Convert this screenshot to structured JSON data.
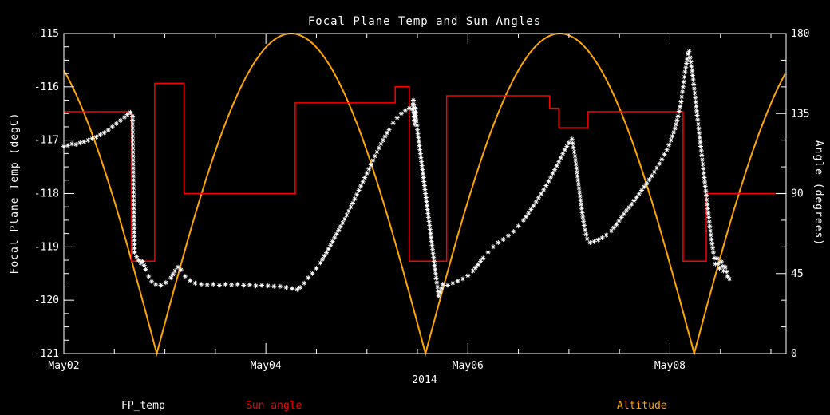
{
  "chart_data": {
    "type": "line",
    "title": "Focal Plane Temp and Sun Angles",
    "background_color": "#000000",
    "axis_color": "#ffffff",
    "x_axis": {
      "year_label": "2014",
      "min_days": 0,
      "max_days": 7.15,
      "tick_positions_days": [
        0,
        2,
        4,
        6
      ],
      "tick_labels": [
        "May02",
        "May04",
        "May06",
        "May08"
      ],
      "minor_tick_step_days": 0.5
    },
    "y_left_axis": {
      "label": "Focal Plane Temp (degC)",
      "min": -121,
      "max": -115,
      "tick_values": [
        -115,
        -116,
        -117,
        -118,
        -119,
        -120,
        -121
      ],
      "tick_labels": [
        "-115",
        "-116",
        "-117",
        "-118",
        "-119",
        "-120",
        "-121"
      ],
      "minor_tick_step": 0.25
    },
    "y_right_axis": {
      "label": "Angle (degrees)",
      "min": 0,
      "max": 180,
      "tick_values": [
        0,
        45,
        90,
        135,
        180
      ],
      "tick_labels": [
        "0",
        "45",
        "90",
        "135",
        "180"
      ],
      "minor_tick_step": 15
    },
    "series": [
      {
        "name": "FP_temp",
        "axis": "left",
        "style": "asterisk-markers",
        "color": "#ffffff",
        "points_t_days_temp_degC": [
          [
            0.0,
            -117.12
          ],
          [
            0.04,
            -117.1
          ],
          [
            0.08,
            -117.07
          ],
          [
            0.12,
            -117.08
          ],
          [
            0.16,
            -117.05
          ],
          [
            0.2,
            -117.03
          ],
          [
            0.24,
            -117.0
          ],
          [
            0.28,
            -116.97
          ],
          [
            0.32,
            -116.94
          ],
          [
            0.36,
            -116.9
          ],
          [
            0.4,
            -116.86
          ],
          [
            0.44,
            -116.81
          ],
          [
            0.48,
            -116.75
          ],
          [
            0.52,
            -116.69
          ],
          [
            0.56,
            -116.63
          ],
          [
            0.6,
            -116.57
          ],
          [
            0.63,
            -116.52
          ],
          [
            0.66,
            -116.48
          ],
          [
            0.68,
            -116.55
          ],
          [
            0.7,
            -119.1
          ],
          [
            0.72,
            -119.18
          ],
          [
            0.74,
            -119.25
          ],
          [
            0.76,
            -119.3
          ],
          [
            0.78,
            -119.27
          ],
          [
            0.81,
            -119.42
          ],
          [
            0.84,
            -119.55
          ],
          [
            0.87,
            -119.65
          ],
          [
            0.91,
            -119.7
          ],
          [
            0.96,
            -119.72
          ],
          [
            1.01,
            -119.67
          ],
          [
            1.06,
            -119.58
          ],
          [
            1.1,
            -119.45
          ],
          [
            1.13,
            -119.38
          ],
          [
            1.16,
            -119.43
          ],
          [
            1.2,
            -119.55
          ],
          [
            1.25,
            -119.63
          ],
          [
            1.3,
            -119.68
          ],
          [
            1.36,
            -119.7
          ],
          [
            1.42,
            -119.71
          ],
          [
            1.48,
            -119.7
          ],
          [
            1.54,
            -119.72
          ],
          [
            1.6,
            -119.7
          ],
          [
            1.66,
            -119.71
          ],
          [
            1.72,
            -119.7
          ],
          [
            1.78,
            -119.72
          ],
          [
            1.84,
            -119.71
          ],
          [
            1.9,
            -119.73
          ],
          [
            1.96,
            -119.72
          ],
          [
            2.02,
            -119.73
          ],
          [
            2.08,
            -119.74
          ],
          [
            2.14,
            -119.74
          ],
          [
            2.2,
            -119.76
          ],
          [
            2.26,
            -119.78
          ],
          [
            2.31,
            -119.8
          ],
          [
            2.34,
            -119.76
          ],
          [
            2.38,
            -119.68
          ],
          [
            2.42,
            -119.58
          ],
          [
            2.46,
            -119.5
          ],
          [
            2.5,
            -119.4
          ],
          [
            2.54,
            -119.3
          ],
          [
            2.58,
            -119.17
          ],
          [
            2.62,
            -119.04
          ],
          [
            2.66,
            -118.9
          ],
          [
            2.7,
            -118.76
          ],
          [
            2.74,
            -118.62
          ],
          [
            2.78,
            -118.48
          ],
          [
            2.82,
            -118.33
          ],
          [
            2.86,
            -118.18
          ],
          [
            2.9,
            -118.02
          ],
          [
            2.94,
            -117.86
          ],
          [
            2.98,
            -117.7
          ],
          [
            3.02,
            -117.54
          ],
          [
            3.06,
            -117.38
          ],
          [
            3.1,
            -117.22
          ],
          [
            3.14,
            -117.07
          ],
          [
            3.18,
            -116.93
          ],
          [
            3.22,
            -116.8
          ],
          [
            3.26,
            -116.68
          ],
          [
            3.3,
            -116.58
          ],
          [
            3.34,
            -116.5
          ],
          [
            3.38,
            -116.44
          ],
          [
            3.42,
            -116.4
          ],
          [
            3.45,
            -116.42
          ],
          [
            3.46,
            -116.25
          ],
          [
            3.47,
            -116.7
          ],
          [
            3.48,
            -116.4
          ],
          [
            3.5,
            -116.8
          ],
          [
            3.54,
            -117.4
          ],
          [
            3.58,
            -118.0
          ],
          [
            3.62,
            -118.6
          ],
          [
            3.65,
            -119.05
          ],
          [
            3.68,
            -119.5
          ],
          [
            3.71,
            -119.92
          ],
          [
            3.75,
            -119.7
          ],
          [
            3.8,
            -119.72
          ],
          [
            3.85,
            -119.68
          ],
          [
            3.9,
            -119.64
          ],
          [
            3.95,
            -119.6
          ],
          [
            4.0,
            -119.54
          ],
          [
            4.05,
            -119.45
          ],
          [
            4.1,
            -119.33
          ],
          [
            4.15,
            -119.21
          ],
          [
            4.2,
            -119.1
          ],
          [
            4.25,
            -119.0
          ],
          [
            4.3,
            -118.92
          ],
          [
            4.35,
            -118.86
          ],
          [
            4.4,
            -118.79
          ],
          [
            4.45,
            -118.71
          ],
          [
            4.5,
            -118.61
          ],
          [
            4.55,
            -118.5
          ],
          [
            4.6,
            -118.37
          ],
          [
            4.65,
            -118.23
          ],
          [
            4.7,
            -118.08
          ],
          [
            4.75,
            -117.93
          ],
          [
            4.8,
            -117.77
          ],
          [
            4.84,
            -117.62
          ],
          [
            4.88,
            -117.48
          ],
          [
            4.92,
            -117.33
          ],
          [
            4.96,
            -117.18
          ],
          [
            5.0,
            -117.05
          ],
          [
            5.03,
            -116.98
          ],
          [
            5.06,
            -117.3
          ],
          [
            5.09,
            -117.75
          ],
          [
            5.12,
            -118.2
          ],
          [
            5.15,
            -118.6
          ],
          [
            5.18,
            -118.85
          ],
          [
            5.21,
            -118.92
          ],
          [
            5.25,
            -118.9
          ],
          [
            5.29,
            -118.87
          ],
          [
            5.33,
            -118.83
          ],
          [
            5.37,
            -118.78
          ],
          [
            5.42,
            -118.7
          ],
          [
            5.47,
            -118.58
          ],
          [
            5.52,
            -118.45
          ],
          [
            5.57,
            -118.32
          ],
          [
            5.62,
            -118.2
          ],
          [
            5.67,
            -118.07
          ],
          [
            5.72,
            -117.94
          ],
          [
            5.77,
            -117.81
          ],
          [
            5.82,
            -117.67
          ],
          [
            5.87,
            -117.52
          ],
          [
            5.92,
            -117.36
          ],
          [
            5.97,
            -117.18
          ],
          [
            6.01,
            -117.0
          ],
          [
            6.05,
            -116.78
          ],
          [
            6.08,
            -116.55
          ],
          [
            6.11,
            -116.28
          ],
          [
            6.13,
            -116.0
          ],
          [
            6.15,
            -115.72
          ],
          [
            6.17,
            -115.48
          ],
          [
            6.18,
            -115.38
          ],
          [
            6.19,
            -115.34
          ],
          [
            6.2,
            -115.45
          ],
          [
            6.22,
            -115.7
          ],
          [
            6.25,
            -116.2
          ],
          [
            6.28,
            -116.7
          ],
          [
            6.31,
            -117.2
          ],
          [
            6.34,
            -117.7
          ],
          [
            6.37,
            -118.2
          ],
          [
            6.4,
            -118.7
          ],
          [
            6.43,
            -119.1
          ],
          [
            6.45,
            -119.32
          ],
          [
            6.47,
            -119.22
          ],
          [
            6.49,
            -119.4
          ],
          [
            6.51,
            -119.28
          ],
          [
            6.53,
            -119.45
          ],
          [
            6.55,
            -119.38
          ],
          [
            6.57,
            -119.55
          ],
          [
            6.59,
            -119.6
          ]
        ]
      },
      {
        "name": "Sun angle",
        "axis": "right",
        "style": "step-line",
        "color": "#ff0000",
        "points_t_days_angle_deg": [
          [
            0.0,
            136
          ],
          [
            0.67,
            136
          ],
          [
            0.67,
            52
          ],
          [
            0.9,
            52
          ],
          [
            0.9,
            152
          ],
          [
            1.19,
            152
          ],
          [
            1.19,
            90
          ],
          [
            2.29,
            90
          ],
          [
            2.29,
            141
          ],
          [
            3.28,
            141
          ],
          [
            3.28,
            150
          ],
          [
            3.42,
            150
          ],
          [
            3.42,
            52
          ],
          [
            3.79,
            52
          ],
          [
            3.79,
            145
          ],
          [
            4.81,
            145
          ],
          [
            4.81,
            138
          ],
          [
            4.9,
            138
          ],
          [
            4.9,
            127
          ],
          [
            5.19,
            127
          ],
          [
            5.19,
            136
          ],
          [
            6.13,
            136
          ],
          [
            6.13,
            52
          ],
          [
            6.36,
            52
          ],
          [
            6.36,
            90
          ],
          [
            7.15,
            90
          ]
        ]
      },
      {
        "name": "Altitude",
        "axis": "right",
        "style": "smooth-line",
        "color": "#ffa500",
        "model": "angle = 180 * abs(sin(pi * (t - 0.92) / 2.66))",
        "amplitude_deg": 180,
        "period_days": 2.66,
        "zero_phase_days": 0.92,
        "zeros_at_days": [
          0.92,
          3.58,
          6.24
        ],
        "peaks_at_days": [
          2.25,
          4.91
        ]
      }
    ]
  },
  "legend": [
    {
      "label": "FP_temp",
      "color": "#ffffff"
    },
    {
      "label": "Sun angle",
      "color": "#ff0000"
    },
    {
      "label": "Altitude",
      "color": "#ffa500"
    }
  ]
}
